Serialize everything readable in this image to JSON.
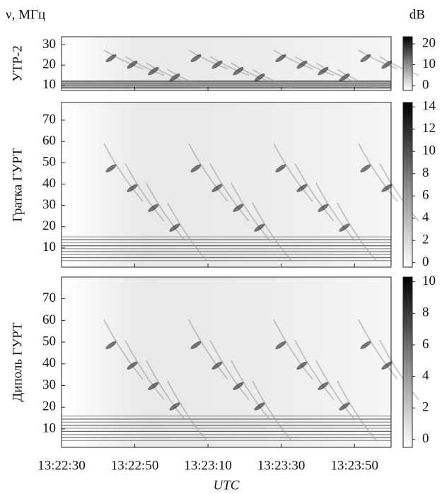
{
  "y_unit_label": "ν, МГц",
  "colorbar_unit": "dB",
  "x_axis": {
    "label": "UTC",
    "xlim": [
      "13:22:30",
      "13:24:00"
    ],
    "xticks": [
      "13:22:30",
      "13:22:50",
      "13:23:10",
      "13:23:30",
      "13:23:50"
    ]
  },
  "chart_data": [
    {
      "type": "spectrogram",
      "ylabel": "УТР-2",
      "ylim": [
        7.5,
        34
      ],
      "yticks": [
        10,
        20,
        30
      ],
      "colorbar_lim": [
        -2.4,
        23.4
      ],
      "colorbar_ticks": [
        0,
        10,
        20
      ]
    },
    {
      "type": "spectrogram",
      "ylabel": "Гратка ГУРТ",
      "ylim": [
        1,
        78.3
      ],
      "yticks": [
        10,
        20,
        30,
        40,
        50,
        60,
        70
      ],
      "colorbar_lim": [
        -0.4,
        14.4
      ],
      "colorbar_ticks": [
        0,
        2,
        4,
        6,
        8,
        10,
        12,
        14
      ]
    },
    {
      "type": "spectrogram",
      "ylabel": "Диполь ГУРТ",
      "ylim": [
        1.5,
        80
      ],
      "yticks": [
        10,
        20,
        30,
        40,
        50,
        60,
        70
      ],
      "colorbar_lim": [
        -0.5,
        10.3
      ],
      "colorbar_ticks": [
        0,
        2,
        4,
        6,
        8,
        10
      ]
    }
  ]
}
